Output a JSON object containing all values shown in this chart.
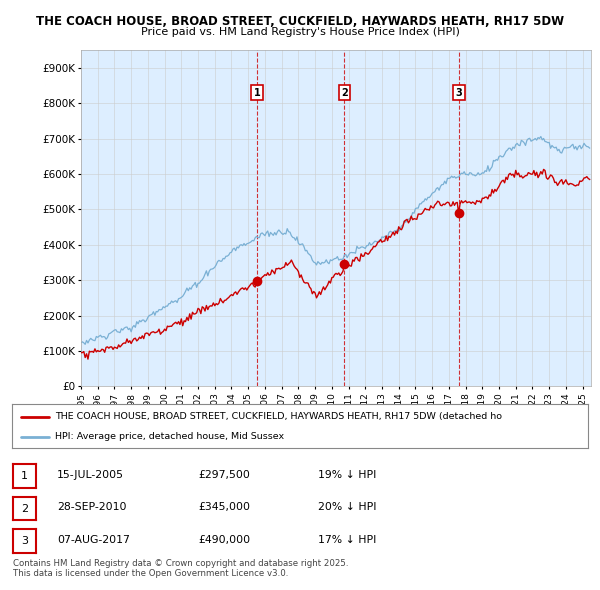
{
  "title1": "THE COACH HOUSE, BROAD STREET, CUCKFIELD, HAYWARDS HEATH, RH17 5DW",
  "title2": "Price paid vs. HM Land Registry's House Price Index (HPI)",
  "ylim": [
    0,
    950000
  ],
  "yticks": [
    0,
    100000,
    200000,
    300000,
    400000,
    500000,
    600000,
    700000,
    800000,
    900000
  ],
  "ytick_labels": [
    "£0",
    "£100K",
    "£200K",
    "£300K",
    "£400K",
    "£500K",
    "£600K",
    "£700K",
    "£800K",
    "£900K"
  ],
  "red_line_color": "#cc0000",
  "blue_line_color": "#7ab0d4",
  "vline_color": "#cc0000",
  "grid_color": "#cccccc",
  "bg_color": "#ffffff",
  "chart_bg_color": "#ddeeff",
  "legend_label_red": "THE COACH HOUSE, BROAD STREET, CUCKFIELD, HAYWARDS HEATH, RH17 5DW (detached ho",
  "legend_label_blue": "HPI: Average price, detached house, Mid Sussex",
  "transactions": [
    {
      "num": 1,
      "date": "15-JUL-2005",
      "price": "£297,500",
      "hpi": "19% ↓ HPI",
      "year": 2005.54
    },
    {
      "num": 2,
      "date": "28-SEP-2010",
      "price": "£345,000",
      "hpi": "20% ↓ HPI",
      "year": 2010.75
    },
    {
      "num": 3,
      "date": "07-AUG-2017",
      "price": "£490,000",
      "hpi": "17% ↓ HPI",
      "year": 2017.6
    }
  ],
  "transaction_prices": [
    297500,
    345000,
    490000
  ],
  "footnote1": "Contains HM Land Registry data © Crown copyright and database right 2025.",
  "footnote2": "This data is licensed under the Open Government Licence v3.0.",
  "xstart": 1995,
  "xend": 2025.5
}
